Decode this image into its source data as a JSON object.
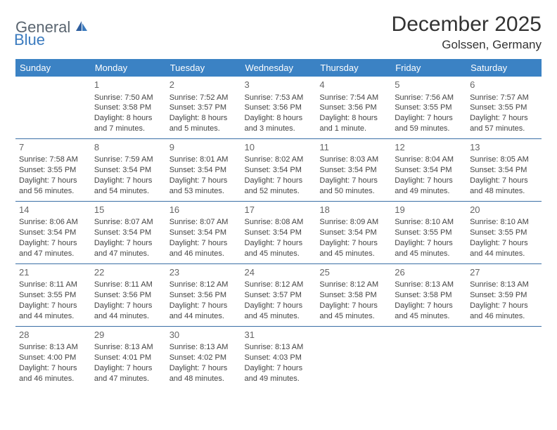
{
  "brand": {
    "part1": "General",
    "part2": "Blue"
  },
  "title": "December 2025",
  "location": "Golssen, Germany",
  "colors": {
    "header_bg": "#3b82c4",
    "header_text": "#ffffff",
    "row_border": "#3b6fa6",
    "brand_gray": "#5a6570",
    "brand_blue": "#3b7bbf"
  },
  "weekdays": [
    "Sunday",
    "Monday",
    "Tuesday",
    "Wednesday",
    "Thursday",
    "Friday",
    "Saturday"
  ],
  "weeks": [
    [
      null,
      {
        "d": "1",
        "sr": "7:50 AM",
        "ss": "3:58 PM",
        "dl": "8 hours and 7 minutes."
      },
      {
        "d": "2",
        "sr": "7:52 AM",
        "ss": "3:57 PM",
        "dl": "8 hours and 5 minutes."
      },
      {
        "d": "3",
        "sr": "7:53 AM",
        "ss": "3:56 PM",
        "dl": "8 hours and 3 minutes."
      },
      {
        "d": "4",
        "sr": "7:54 AM",
        "ss": "3:56 PM",
        "dl": "8 hours and 1 minute."
      },
      {
        "d": "5",
        "sr": "7:56 AM",
        "ss": "3:55 PM",
        "dl": "7 hours and 59 minutes."
      },
      {
        "d": "6",
        "sr": "7:57 AM",
        "ss": "3:55 PM",
        "dl": "7 hours and 57 minutes."
      }
    ],
    [
      {
        "d": "7",
        "sr": "7:58 AM",
        "ss": "3:55 PM",
        "dl": "7 hours and 56 minutes."
      },
      {
        "d": "8",
        "sr": "7:59 AM",
        "ss": "3:54 PM",
        "dl": "7 hours and 54 minutes."
      },
      {
        "d": "9",
        "sr": "8:01 AM",
        "ss": "3:54 PM",
        "dl": "7 hours and 53 minutes."
      },
      {
        "d": "10",
        "sr": "8:02 AM",
        "ss": "3:54 PM",
        "dl": "7 hours and 52 minutes."
      },
      {
        "d": "11",
        "sr": "8:03 AM",
        "ss": "3:54 PM",
        "dl": "7 hours and 50 minutes."
      },
      {
        "d": "12",
        "sr": "8:04 AM",
        "ss": "3:54 PM",
        "dl": "7 hours and 49 minutes."
      },
      {
        "d": "13",
        "sr": "8:05 AM",
        "ss": "3:54 PM",
        "dl": "7 hours and 48 minutes."
      }
    ],
    [
      {
        "d": "14",
        "sr": "8:06 AM",
        "ss": "3:54 PM",
        "dl": "7 hours and 47 minutes."
      },
      {
        "d": "15",
        "sr": "8:07 AM",
        "ss": "3:54 PM",
        "dl": "7 hours and 47 minutes."
      },
      {
        "d": "16",
        "sr": "8:07 AM",
        "ss": "3:54 PM",
        "dl": "7 hours and 46 minutes."
      },
      {
        "d": "17",
        "sr": "8:08 AM",
        "ss": "3:54 PM",
        "dl": "7 hours and 45 minutes."
      },
      {
        "d": "18",
        "sr": "8:09 AM",
        "ss": "3:54 PM",
        "dl": "7 hours and 45 minutes."
      },
      {
        "d": "19",
        "sr": "8:10 AM",
        "ss": "3:55 PM",
        "dl": "7 hours and 45 minutes."
      },
      {
        "d": "20",
        "sr": "8:10 AM",
        "ss": "3:55 PM",
        "dl": "7 hours and 44 minutes."
      }
    ],
    [
      {
        "d": "21",
        "sr": "8:11 AM",
        "ss": "3:55 PM",
        "dl": "7 hours and 44 minutes."
      },
      {
        "d": "22",
        "sr": "8:11 AM",
        "ss": "3:56 PM",
        "dl": "7 hours and 44 minutes."
      },
      {
        "d": "23",
        "sr": "8:12 AM",
        "ss": "3:56 PM",
        "dl": "7 hours and 44 minutes."
      },
      {
        "d": "24",
        "sr": "8:12 AM",
        "ss": "3:57 PM",
        "dl": "7 hours and 45 minutes."
      },
      {
        "d": "25",
        "sr": "8:12 AM",
        "ss": "3:58 PM",
        "dl": "7 hours and 45 minutes."
      },
      {
        "d": "26",
        "sr": "8:13 AM",
        "ss": "3:58 PM",
        "dl": "7 hours and 45 minutes."
      },
      {
        "d": "27",
        "sr": "8:13 AM",
        "ss": "3:59 PM",
        "dl": "7 hours and 46 minutes."
      }
    ],
    [
      {
        "d": "28",
        "sr": "8:13 AM",
        "ss": "4:00 PM",
        "dl": "7 hours and 46 minutes."
      },
      {
        "d": "29",
        "sr": "8:13 AM",
        "ss": "4:01 PM",
        "dl": "7 hours and 47 minutes."
      },
      {
        "d": "30",
        "sr": "8:13 AM",
        "ss": "4:02 PM",
        "dl": "7 hours and 48 minutes."
      },
      {
        "d": "31",
        "sr": "8:13 AM",
        "ss": "4:03 PM",
        "dl": "7 hours and 49 minutes."
      },
      null,
      null,
      null
    ]
  ],
  "labels": {
    "sunrise": "Sunrise: ",
    "sunset": "Sunset: ",
    "daylight": "Daylight: "
  }
}
